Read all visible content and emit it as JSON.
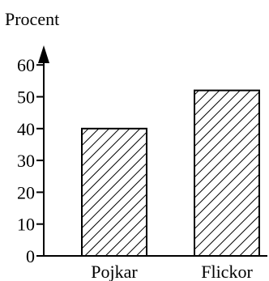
{
  "chart_data": {
    "type": "bar",
    "title": "Procent",
    "xlabel": "",
    "ylabel": "",
    "categories": [
      "Pojkar",
      "Flickor"
    ],
    "values": [
      40,
      52
    ],
    "ylim": [
      0,
      60
    ],
    "yticks": [
      {
        "value": 0,
        "label": "0"
      },
      {
        "value": 10,
        "label": "10"
      },
      {
        "value": 20,
        "label": "20"
      },
      {
        "value": 30,
        "label": "30"
      },
      {
        "value": 40,
        "label": "40"
      },
      {
        "value": 50,
        "label": "50"
      },
      {
        "value": 60,
        "label": "60"
      }
    ],
    "bar_fill": "diagonal-hatch",
    "bar_stroke": "#000000",
    "grid": false,
    "legend": "none"
  }
}
